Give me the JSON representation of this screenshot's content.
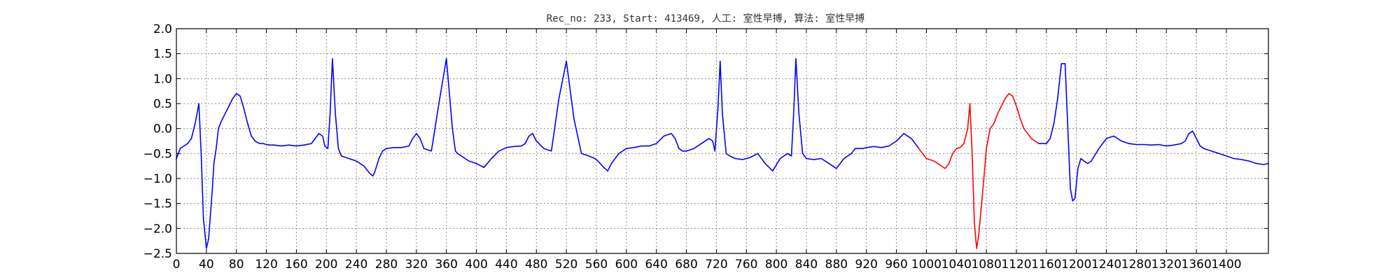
{
  "chart_data": {
    "type": "line",
    "title": "Rec_no: 233, Start: 413469, 人工: 室性早搏, 算法: 室性早搏",
    "xlabel": "",
    "ylabel": "",
    "xlim": [
      0,
      1456
    ],
    "ylim": [
      -2.5,
      2.0
    ],
    "grid": true,
    "x_ticks": [
      0,
      40,
      80,
      120,
      160,
      200,
      240,
      280,
      320,
      360,
      400,
      440,
      480,
      520,
      560,
      600,
      640,
      680,
      720,
      760,
      800,
      840,
      880,
      920,
      960,
      1000,
      1040,
      1080,
      1120,
      1160,
      1200,
      1240,
      1280,
      1320,
      1360,
      1400
    ],
    "x_tick_labels": [
      "0",
      "40",
      "80",
      "120",
      "160",
      "200",
      "240",
      "280",
      "320",
      "360",
      "400",
      "440",
      "480",
      "520",
      "560",
      "600",
      "640",
      "680",
      "720",
      "760",
      "800",
      "840",
      "880",
      "920",
      "960",
      "1000",
      "1040",
      "1080",
      "1120",
      "1160",
      "1200",
      "1240",
      "1280",
      "1320",
      "1360",
      "1400"
    ],
    "y_ticks": [
      2.0,
      1.5,
      1.0,
      0.5,
      0.0,
      -0.5,
      -1.0,
      -1.5,
      -2.0,
      -2.5
    ],
    "y_tick_labels": [
      "2.0",
      "1.5",
      "1.0",
      "0.5",
      "0.0",
      "−0.5",
      "−1.0",
      "−1.5",
      "−2.0",
      "−2.5"
    ],
    "series": [
      {
        "color": "#0000ff",
        "x": [
          0,
          5,
          10,
          15,
          20,
          25,
          30,
          33,
          36,
          40,
          43,
          46,
          48,
          50,
          53,
          56,
          60,
          65,
          70,
          75,
          80,
          85,
          90,
          95,
          100,
          105,
          108,
          112,
          116,
          120,
          125,
          130,
          140,
          150,
          160,
          170,
          180,
          185,
          190,
          195,
          198,
          202,
          205,
          208,
          212,
          216,
          220,
          230,
          240,
          250,
          258,
          262,
          265,
          270,
          275,
          280,
          290,
          300,
          310,
          315,
          320,
          325,
          330,
          340,
          350,
          360,
          368,
          372,
          375,
          380,
          385,
          390,
          400,
          410,
          420,
          430,
          440,
          450,
          460,
          465,
          470,
          475,
          480,
          490,
          500,
          510,
          520,
          530,
          540,
          550,
          558,
          562,
          565,
          570,
          575,
          580,
          590,
          600,
          610,
          620,
          630,
          640,
          650,
          660,
          665,
          670,
          675,
          680,
          690,
          700
        ],
        "y": [
          -0.6,
          -0.4,
          -0.35,
          -0.3,
          -0.2,
          0.1,
          0.5,
          -0.5,
          -1.8,
          -2.4,
          -2.2,
          -1.6,
          -1.2,
          -0.7,
          -0.4,
          0.0,
          0.15,
          0.3,
          0.45,
          0.6,
          0.7,
          0.65,
          0.4,
          0.1,
          -0.15,
          -0.25,
          -0.28,
          -0.3,
          -0.3,
          -0.32,
          -0.33,
          -0.33,
          -0.35,
          -0.33,
          -0.35,
          -0.33,
          -0.3,
          -0.2,
          -0.1,
          -0.15,
          -0.35,
          -0.4,
          0.3,
          1.4,
          0.3,
          -0.4,
          -0.55,
          -0.6,
          -0.65,
          -0.75,
          -0.9,
          -0.95,
          -0.85,
          -0.6,
          -0.45,
          -0.4,
          -0.38,
          -0.38,
          -0.35,
          -0.2,
          -0.1,
          -0.2,
          -0.4,
          -0.45,
          0.5,
          1.4,
          0.0,
          -0.45,
          -0.5,
          -0.55,
          -0.6,
          -0.65,
          -0.7,
          -0.78,
          -0.6,
          -0.45,
          -0.38,
          -0.36,
          -0.35,
          -0.3,
          -0.15,
          -0.1,
          -0.25,
          -0.4,
          -0.45,
          0.6,
          1.35,
          0.2,
          -0.5,
          -0.55,
          -0.6,
          -0.65,
          -0.7,
          -0.78,
          -0.85,
          -0.7,
          -0.5,
          -0.4,
          -0.38,
          -0.35,
          -0.35,
          -0.3,
          -0.15,
          -0.1,
          -0.2,
          -0.4,
          -0.45,
          -0.45,
          -0.4,
          -0.3
        ]
      },
      {
        "color": "#0000ff",
        "x": [
          700,
          710,
          715,
          718,
          722,
          725,
          728,
          733,
          738,
          745,
          755,
          765,
          775,
          785,
          795,
          805,
          815,
          820,
          823,
          826,
          830,
          835,
          840,
          850,
          860,
          870,
          880,
          890,
          900,
          905,
          910,
          915,
          920,
          930,
          940,
          950,
          960,
          970,
          980,
          990
        ],
        "y": [
          -0.3,
          -0.2,
          -0.25,
          -0.45,
          0.4,
          1.35,
          0.3,
          -0.5,
          -0.55,
          -0.6,
          -0.62,
          -0.58,
          -0.5,
          -0.7,
          -0.85,
          -0.6,
          -0.5,
          -0.55,
          0.3,
          1.4,
          0.3,
          -0.5,
          -0.6,
          -0.62,
          -0.6,
          -0.7,
          -0.8,
          -0.6,
          -0.5,
          -0.4,
          -0.4,
          -0.4,
          -0.38,
          -0.36,
          -0.38,
          -0.35,
          -0.25,
          -0.1,
          -0.2,
          -0.4
        ]
      },
      {
        "color": "#ff0000",
        "x": [
          990,
          1000,
          1010,
          1015,
          1020,
          1025,
          1030,
          1035,
          1040,
          1045,
          1050,
          1055,
          1058,
          1061,
          1064,
          1067,
          1070,
          1073,
          1076,
          1080,
          1085,
          1090,
          1095,
          1100,
          1105,
          1110,
          1115,
          1120,
          1125,
          1130,
          1135,
          1140,
          1145,
          1150
        ],
        "y": [
          -0.4,
          -0.6,
          -0.65,
          -0.7,
          -0.75,
          -0.8,
          -0.7,
          -0.5,
          -0.4,
          -0.38,
          -0.3,
          0.0,
          0.5,
          -0.5,
          -1.9,
          -2.4,
          -2.1,
          -1.6,
          -1.1,
          -0.4,
          0.0,
          0.1,
          0.3,
          0.45,
          0.6,
          0.7,
          0.65,
          0.45,
          0.2,
          0.0,
          -0.1,
          -0.2,
          -0.25,
          -0.3
        ]
      },
      {
        "color": "#0000ff",
        "x": [
          1150,
          1160,
          1165,
          1170,
          1175,
          1180,
          1185,
          1188,
          1192,
          1195,
          1198,
          1202,
          1206,
          1210,
          1215,
          1220,
          1230,
          1240,
          1250,
          1260,
          1270,
          1280,
          1290,
          1300,
          1310,
          1320,
          1330,
          1340,
          1345,
          1350,
          1355,
          1360,
          1365,
          1370,
          1380,
          1390,
          1400,
          1410,
          1420,
          1430,
          1440,
          1450,
          1456
        ],
        "y": [
          -0.3,
          -0.3,
          -0.2,
          0.1,
          0.6,
          1.3,
          1.3,
          0.2,
          -1.2,
          -1.45,
          -1.4,
          -0.8,
          -0.6,
          -0.65,
          -0.7,
          -0.65,
          -0.4,
          -0.2,
          -0.15,
          -0.25,
          -0.3,
          -0.32,
          -0.32,
          -0.33,
          -0.32,
          -0.35,
          -0.33,
          -0.3,
          -0.25,
          -0.1,
          -0.05,
          -0.2,
          -0.35,
          -0.4,
          -0.45,
          -0.5,
          -0.55,
          -0.6,
          -0.62,
          -0.65,
          -0.7,
          -0.72,
          -0.7
        ]
      }
    ]
  }
}
